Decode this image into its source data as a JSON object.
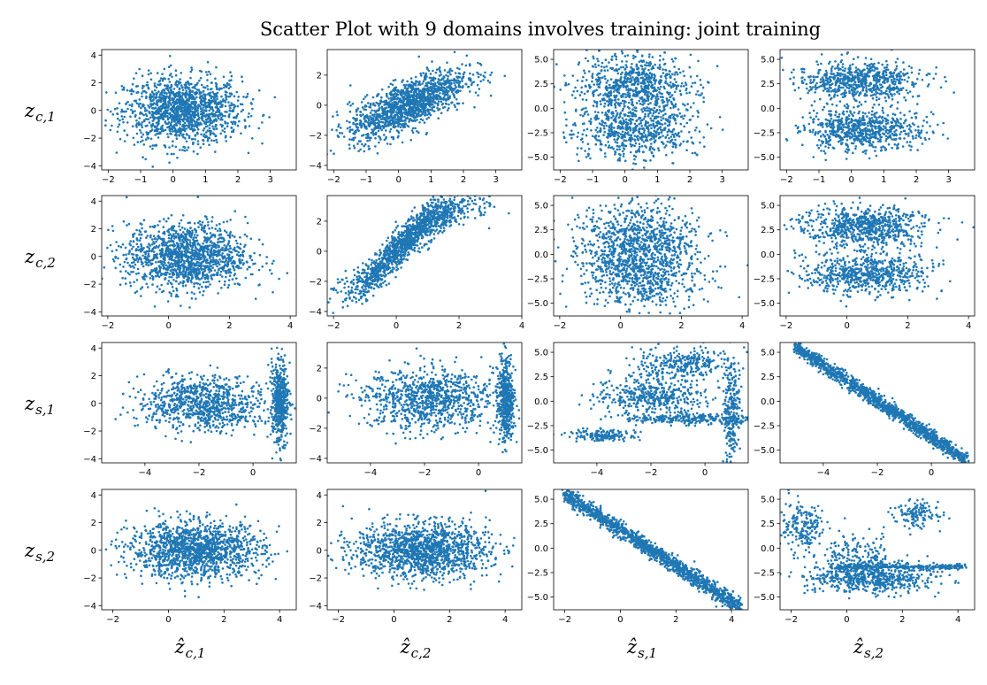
{
  "figure": {
    "title": "Scatter Plot with 9 domains involves training: joint training",
    "row_labels": [
      {
        "symbol": "z",
        "sub": "c,1"
      },
      {
        "symbol": "z",
        "sub": "c,2"
      },
      {
        "symbol": "z",
        "sub": "s,1"
      },
      {
        "symbol": "z",
        "sub": "s,2"
      }
    ],
    "col_labels": [
      {
        "symbol": "ẑ",
        "sub": "c,1"
      },
      {
        "symbol": "ẑ",
        "sub": "c,2"
      },
      {
        "symbol": "ẑ",
        "sub": "s,1"
      },
      {
        "symbol": "ẑ",
        "sub": "s,2"
      }
    ],
    "point_color": "#1f77b4"
  },
  "chart_data": {
    "type": "scatter",
    "rows": 4,
    "cols": 4,
    "panels": [
      {
        "row": 0,
        "col": 0,
        "xlim": [
          -2.2,
          3.8
        ],
        "ylim": [
          -4.3,
          4.4
        ],
        "xticks": [
          "-2",
          "-1",
          "0",
          "1",
          "2",
          "3"
        ],
        "yticks": [
          "-4",
          "-2",
          "0",
          "2",
          "4"
        ],
        "pattern": "horizontal_band",
        "params": {
          "xc": 0.3,
          "xs": 0.9,
          "yc": 0,
          "ys": 1.2
        }
      },
      {
        "row": 0,
        "col": 1,
        "xlim": [
          -2.2,
          3.8
        ],
        "ylim": [
          -4.3,
          3.7
        ],
        "xticks": [
          "-2",
          "-1",
          "0",
          "1",
          "2",
          "3"
        ],
        "yticks": [
          "-4",
          "-2",
          "0",
          "2"
        ],
        "pattern": "linear",
        "params": {
          "xc": 0.3,
          "xs": 0.9,
          "slope": 0.9,
          "icpt": -0.2,
          "noise": 0.8
        }
      },
      {
        "row": 0,
        "col": 2,
        "xlim": [
          -2.2,
          3.8
        ],
        "ylim": [
          -6.3,
          6.0
        ],
        "xticks": [
          "-2",
          "-1",
          "0",
          "1",
          "2",
          "3"
        ],
        "yticks": [
          "-5.0",
          "-2.5",
          "0.0",
          "2.5",
          "5.0"
        ],
        "pattern": "bimodal_y",
        "params": {
          "xc": 0.3,
          "xs": 0.9,
          "m1": 2.5,
          "m2": -2.2,
          "ys": 1.5
        }
      },
      {
        "row": 0,
        "col": 3,
        "xlim": [
          -2.2,
          3.8
        ],
        "ylim": [
          -6.3,
          6.0
        ],
        "xticks": [
          "-2",
          "-1",
          "0",
          "1",
          "2",
          "3"
        ],
        "yticks": [
          "-5.0",
          "-2.5",
          "0.0",
          "2.5",
          "5.0"
        ],
        "pattern": "bimodal_y",
        "params": {
          "xc": 0.3,
          "xs": 0.9,
          "m1": 2.8,
          "m2": -2.2,
          "ys": 1.0
        }
      },
      {
        "row": 1,
        "col": 0,
        "xlim": [
          -2.2,
          4.2
        ],
        "ylim": [
          -4.3,
          4.4
        ],
        "xticks": [
          "-2",
          "0",
          "2",
          "4"
        ],
        "yticks": [
          "-4",
          "-2",
          "0",
          "2",
          "4"
        ],
        "pattern": "horizontal_band",
        "params": {
          "xc": 0.6,
          "xs": 1.0,
          "yc": 0,
          "ys": 1.2
        }
      },
      {
        "row": 1,
        "col": 1,
        "xlim": [
          -2.2,
          4.0
        ],
        "ylim": [
          -4.3,
          3.7
        ],
        "xticks": [
          "-2",
          "0",
          "2",
          "4"
        ],
        "yticks": [
          "-4",
          "-2",
          "0",
          "2"
        ],
        "pattern": "curve",
        "params": {
          "xc": 0.4,
          "xs": 1.0
        }
      },
      {
        "row": 1,
        "col": 2,
        "xlim": [
          -2.2,
          4.2
        ],
        "ylim": [
          -6.3,
          6.0
        ],
        "xticks": [
          "-2",
          "0",
          "2",
          "4"
        ],
        "yticks": [
          "-5.0",
          "-2.5",
          "0.0",
          "2.5",
          "5.0"
        ],
        "pattern": "bimodal_y",
        "params": {
          "xc": 0.6,
          "xs": 1.0,
          "m1": 1.5,
          "m2": -1.8,
          "ys": 2.0
        }
      },
      {
        "row": 1,
        "col": 3,
        "xlim": [
          -2.2,
          4.2
        ],
        "ylim": [
          -6.3,
          6.0
        ],
        "xticks": [
          "-2",
          "0",
          "2",
          "4"
        ],
        "yticks": [
          "-5.0",
          "-2.5",
          "0.0",
          "2.5",
          "5.0"
        ],
        "pattern": "bimodal_y",
        "params": {
          "xc": 0.6,
          "xs": 1.0,
          "m1": 2.8,
          "m2": -2.0,
          "ys": 1.0
        }
      },
      {
        "row": 2,
        "col": 0,
        "xlim": [
          -5.6,
          1.6
        ],
        "ylim": [
          -4.3,
          4.4
        ],
        "xticks": [
          "-4",
          "-2",
          "0"
        ],
        "yticks": [
          "-4",
          "-2",
          "0",
          "2",
          "4"
        ],
        "pattern": "cluster_right",
        "params": {
          "xc": -1.8,
          "xs": 1.2,
          "rx": 1.0,
          "rxs": 0.15,
          "ys": 1.0,
          "rys": 1.4
        }
      },
      {
        "row": 2,
        "col": 1,
        "xlim": [
          -5.6,
          1.6
        ],
        "ylim": [
          -4.3,
          3.7
        ],
        "xticks": [
          "-4",
          "-2",
          "0"
        ],
        "yticks": [
          "-4",
          "-2",
          "0",
          "2"
        ],
        "pattern": "cluster_right",
        "params": {
          "xc": -1.8,
          "xs": 1.2,
          "rx": 1.0,
          "rxs": 0.15,
          "ys": 1.0,
          "rys": 1.4
        }
      },
      {
        "row": 2,
        "col": 2,
        "xlim": [
          -5.6,
          1.6
        ],
        "ylim": [
          -6.3,
          6.0
        ],
        "xticks": [
          "-4",
          "-2",
          "0"
        ],
        "yticks": [
          "-5.0",
          "-2.5",
          "0.0",
          "2.5",
          "5.0"
        ],
        "pattern": "structured",
        "params": {}
      },
      {
        "row": 2,
        "col": 3,
        "xlim": [
          -5.6,
          1.6
        ],
        "ylim": [
          -6.3,
          6.0
        ],
        "xticks": [
          "-4",
          "-2",
          "0"
        ],
        "yticks": [
          "-5.0",
          "-2.5",
          "0.0",
          "2.5",
          "5.0"
        ],
        "pattern": "neg_linear",
        "params": {
          "x0": -5.0,
          "x1": 1.3,
          "y0": 5.5,
          "y1": -6.0,
          "noise": 0.35
        }
      },
      {
        "row": 3,
        "col": 0,
        "xlim": [
          -2.4,
          4.6
        ],
        "ylim": [
          -4.3,
          4.4
        ],
        "xticks": [
          "-2",
          "0",
          "2",
          "4"
        ],
        "yticks": [
          "-4",
          "-2",
          "0",
          "2",
          "4"
        ],
        "pattern": "horizontal_band",
        "params": {
          "xc": 1.0,
          "xs": 1.2,
          "yc": 0,
          "ys": 1.0
        }
      },
      {
        "row": 3,
        "col": 1,
        "xlim": [
          -2.4,
          4.6
        ],
        "ylim": [
          -4.3,
          4.4
        ],
        "xticks": [
          "-2",
          "0",
          "2",
          "4"
        ],
        "yticks": [
          "-4",
          "-2",
          "0",
          "2",
          "4"
        ],
        "pattern": "horizontal_band",
        "params": {
          "xc": 1.0,
          "xs": 1.2,
          "yc": 0,
          "ys": 1.0
        }
      },
      {
        "row": 3,
        "col": 2,
        "xlim": [
          -2.4,
          4.6
        ],
        "ylim": [
          -6.3,
          6.0
        ],
        "xticks": [
          "-2",
          "0",
          "2",
          "4"
        ],
        "yticks": [
          "-5.0",
          "-2.5",
          "0.0",
          "2.5",
          "5.0"
        ],
        "pattern": "neg_linear",
        "params": {
          "x0": -2.0,
          "x1": 4.3,
          "y0": 5.5,
          "y1": -6.0,
          "noise": 0.4
        }
      },
      {
        "row": 3,
        "col": 3,
        "xlim": [
          -2.4,
          4.6
        ],
        "ylim": [
          -6.3,
          6.0
        ],
        "xticks": [
          "-2",
          "0",
          "2",
          "4"
        ],
        "yticks": [
          "-5.0",
          "-2.5",
          "0.0",
          "2.5",
          "5.0"
        ],
        "pattern": "complex",
        "params": {}
      }
    ]
  }
}
